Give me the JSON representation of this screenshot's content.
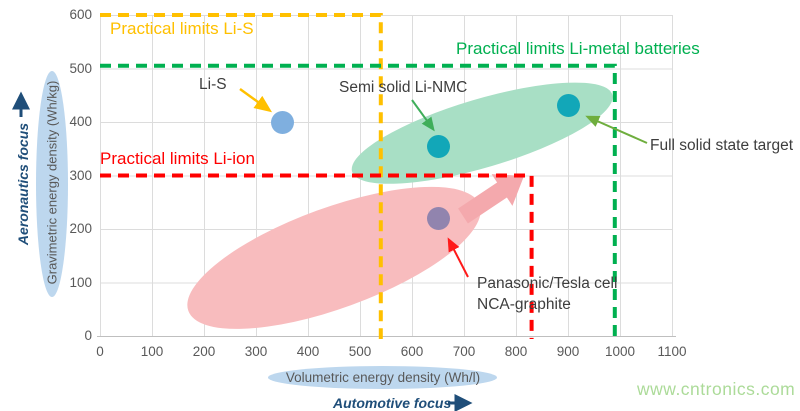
{
  "chart_data": {
    "type": "scatter",
    "title": "",
    "xlabel": "Volumetric energy density (Wh/l)",
    "ylabel": "Gravimetric energy density (Wh/kg)",
    "xlim": [
      0,
      1100
    ],
    "ylim": [
      0,
      600
    ],
    "x_ticks": [
      0,
      100,
      200,
      300,
      400,
      500,
      600,
      700,
      800,
      900,
      1000,
      1100
    ],
    "y_ticks": [
      0,
      100,
      200,
      300,
      400,
      500,
      600
    ],
    "grid": true,
    "points": [
      {
        "label": "Li-S",
        "x": 350,
        "y": 400,
        "color": "#7FAFDF"
      },
      {
        "label": "Semi solid Li-NMC",
        "x": 650,
        "y": 355,
        "color": "#12A7B8"
      },
      {
        "label": "Full solid state target",
        "x": 900,
        "y": 430,
        "color": "#12A7B8"
      },
      {
        "label": "Panasonic/Tesla cell NCA-graphite",
        "x": 650,
        "y": 220,
        "color": "#9184AE"
      }
    ],
    "limit_boxes": [
      {
        "label": "Practical limits Li-S",
        "x_max": 540,
        "y_max": 600,
        "color": "#FFC000"
      },
      {
        "label": "Practical limits Li-metal batteries",
        "x_max": 990,
        "y_max": 505,
        "color": "#00B050"
      },
      {
        "label": "Practical limits Li-ion",
        "x_max": 830,
        "y_max": 300,
        "color": "#FF0000"
      }
    ],
    "regions": [
      {
        "name": "li-ion-cells",
        "color": "#F8BCBE",
        "center_x": 450,
        "center_y": 146,
        "rx_data": 298,
        "ry_data": 94,
        "tilt_deg": -20
      },
      {
        "name": "li-metal-cells",
        "color": "#A8DFC5",
        "center_x": 735,
        "center_y": 379,
        "rx_data": 261,
        "ry_data": 64,
        "tilt_deg": -16.5
      }
    ],
    "annotations": [
      {
        "label": "Li-S",
        "target_x": 350,
        "target_y": 400,
        "arrow_color": "#FFC000"
      },
      {
        "label": "Semi solid Li-NMC",
        "target_x": 650,
        "target_y": 355,
        "arrow_color": "#3FAE5A"
      },
      {
        "label": "Full solid state target",
        "target_x": 900,
        "target_y": 430,
        "arrow_color": "#6FAE3E"
      },
      {
        "label": "Panasonic/Tesla cell",
        "label_line2": "NCA-graphite",
        "target_x": 650,
        "target_y": 220,
        "arrow_color": "#FF1A1A"
      }
    ]
  },
  "focus_labels": {
    "aeronautics": "Aeronautics focus",
    "automotive": "Automotive focus",
    "color": "#1F4E79",
    "up_arrow_icon": "arrow-up",
    "right_arrow_icon": "arrow-right"
  },
  "footer": {
    "watermark": "www.cntronics.com",
    "watermark_color": "#ACDB99"
  }
}
